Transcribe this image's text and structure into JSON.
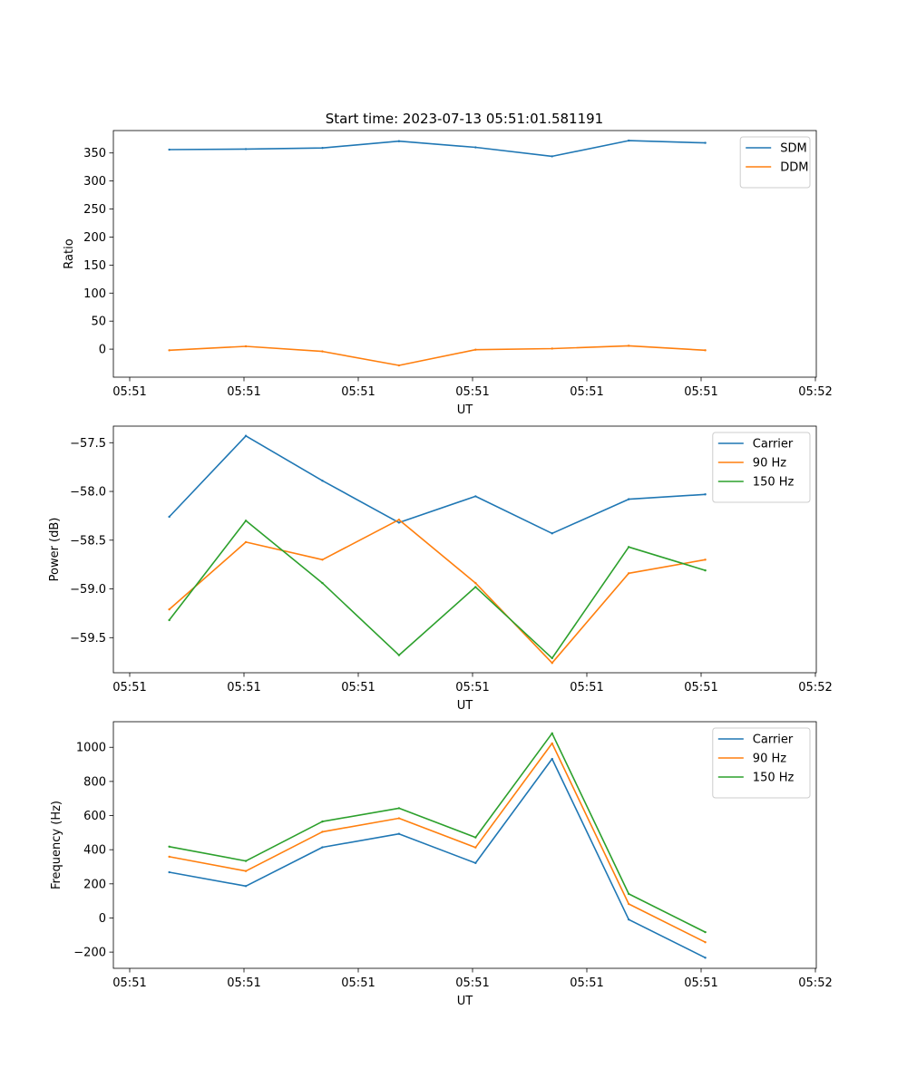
{
  "figure_title": "Start time: 2023-07-13 05:51:01.581191",
  "colors": {
    "blue": "#1f77b4",
    "orange": "#ff7f0e",
    "green": "#2ca02c"
  },
  "chart_data": [
    {
      "type": "line",
      "title": "Start time: 2023-07-13 05:51:01.581191",
      "xlabel": "UT",
      "ylabel": "Ratio",
      "x_tick_labels": [
        "05:51",
        "05:51",
        "05:51",
        "05:51",
        "05:51",
        "05:51",
        "05:52"
      ],
      "x": [
        1,
        2,
        3,
        4,
        5,
        6,
        7,
        8
      ],
      "xlim": [
        0.27,
        9.45
      ],
      "ylim": [
        -50,
        390
      ],
      "yticks": [
        0,
        50,
        100,
        150,
        200,
        250,
        300,
        350
      ],
      "legend_loc": "upper right",
      "series": [
        {
          "name": "SDM",
          "color": "#1f77b4",
          "values": [
            356,
            357,
            359,
            371,
            360,
            344,
            372,
            368
          ]
        },
        {
          "name": "DDM",
          "color": "#ff7f0e",
          "values": [
            -2,
            5,
            -4,
            -29,
            -1,
            1,
            6,
            -2
          ]
        }
      ]
    },
    {
      "type": "line",
      "xlabel": "UT",
      "ylabel": "Power (dB)",
      "x_tick_labels": [
        "05:51",
        "05:51",
        "05:51",
        "05:51",
        "05:51",
        "05:51",
        "05:52"
      ],
      "x": [
        1,
        2,
        3,
        4,
        5,
        6,
        7,
        8
      ],
      "xlim": [
        0.27,
        9.45
      ],
      "ylim": [
        -59.86,
        -57.33
      ],
      "yticks": [
        -57.5,
        -58.0,
        -58.5,
        -59.0,
        -59.5
      ],
      "ytick_labels": [
        "−57.5",
        "−58.0",
        "−58.5",
        "−59.0",
        "−59.5"
      ],
      "legend_loc": "upper right",
      "series": [
        {
          "name": "Carrier",
          "color": "#1f77b4",
          "values": [
            -58.26,
            -57.43,
            -57.89,
            -58.32,
            -58.05,
            -58.43,
            -58.08,
            -58.03
          ]
        },
        {
          "name": "90 Hz",
          "color": "#ff7f0e",
          "values": [
            -59.21,
            -58.52,
            -58.7,
            -58.29,
            -58.94,
            -59.76,
            -58.84,
            -58.7
          ]
        },
        {
          "name": "150 Hz",
          "color": "#2ca02c",
          "values": [
            -59.32,
            -58.3,
            -58.94,
            -59.68,
            -58.98,
            -59.71,
            -58.57,
            -58.81
          ]
        }
      ]
    },
    {
      "type": "line",
      "xlabel": "UT",
      "ylabel": "Frequency (Hz)",
      "x_tick_labels": [
        "05:51",
        "05:51",
        "05:51",
        "05:51",
        "05:51",
        "05:51",
        "05:52"
      ],
      "x": [
        1,
        2,
        3,
        4,
        5,
        6,
        7,
        8
      ],
      "xlim": [
        0.27,
        9.45
      ],
      "ylim": [
        -295,
        1150
      ],
      "yticks": [
        -200,
        0,
        200,
        400,
        600,
        800,
        1000
      ],
      "ytick_labels": [
        "−200",
        "0",
        "200",
        "400",
        "600",
        "800",
        "1000"
      ],
      "legend_loc": "upper right",
      "series": [
        {
          "name": "Carrier",
          "color": "#1f77b4",
          "values": [
            268,
            187,
            414,
            493,
            322,
            932,
            -9,
            -233
          ]
        },
        {
          "name": "90 Hz",
          "color": "#ff7f0e",
          "values": [
            359,
            275,
            505,
            584,
            413,
            1023,
            82,
            -142
          ]
        },
        {
          "name": "150 Hz",
          "color": "#2ca02c",
          "values": [
            418,
            334,
            565,
            643,
            472,
            1082,
            141,
            -83
          ]
        }
      ]
    }
  ]
}
